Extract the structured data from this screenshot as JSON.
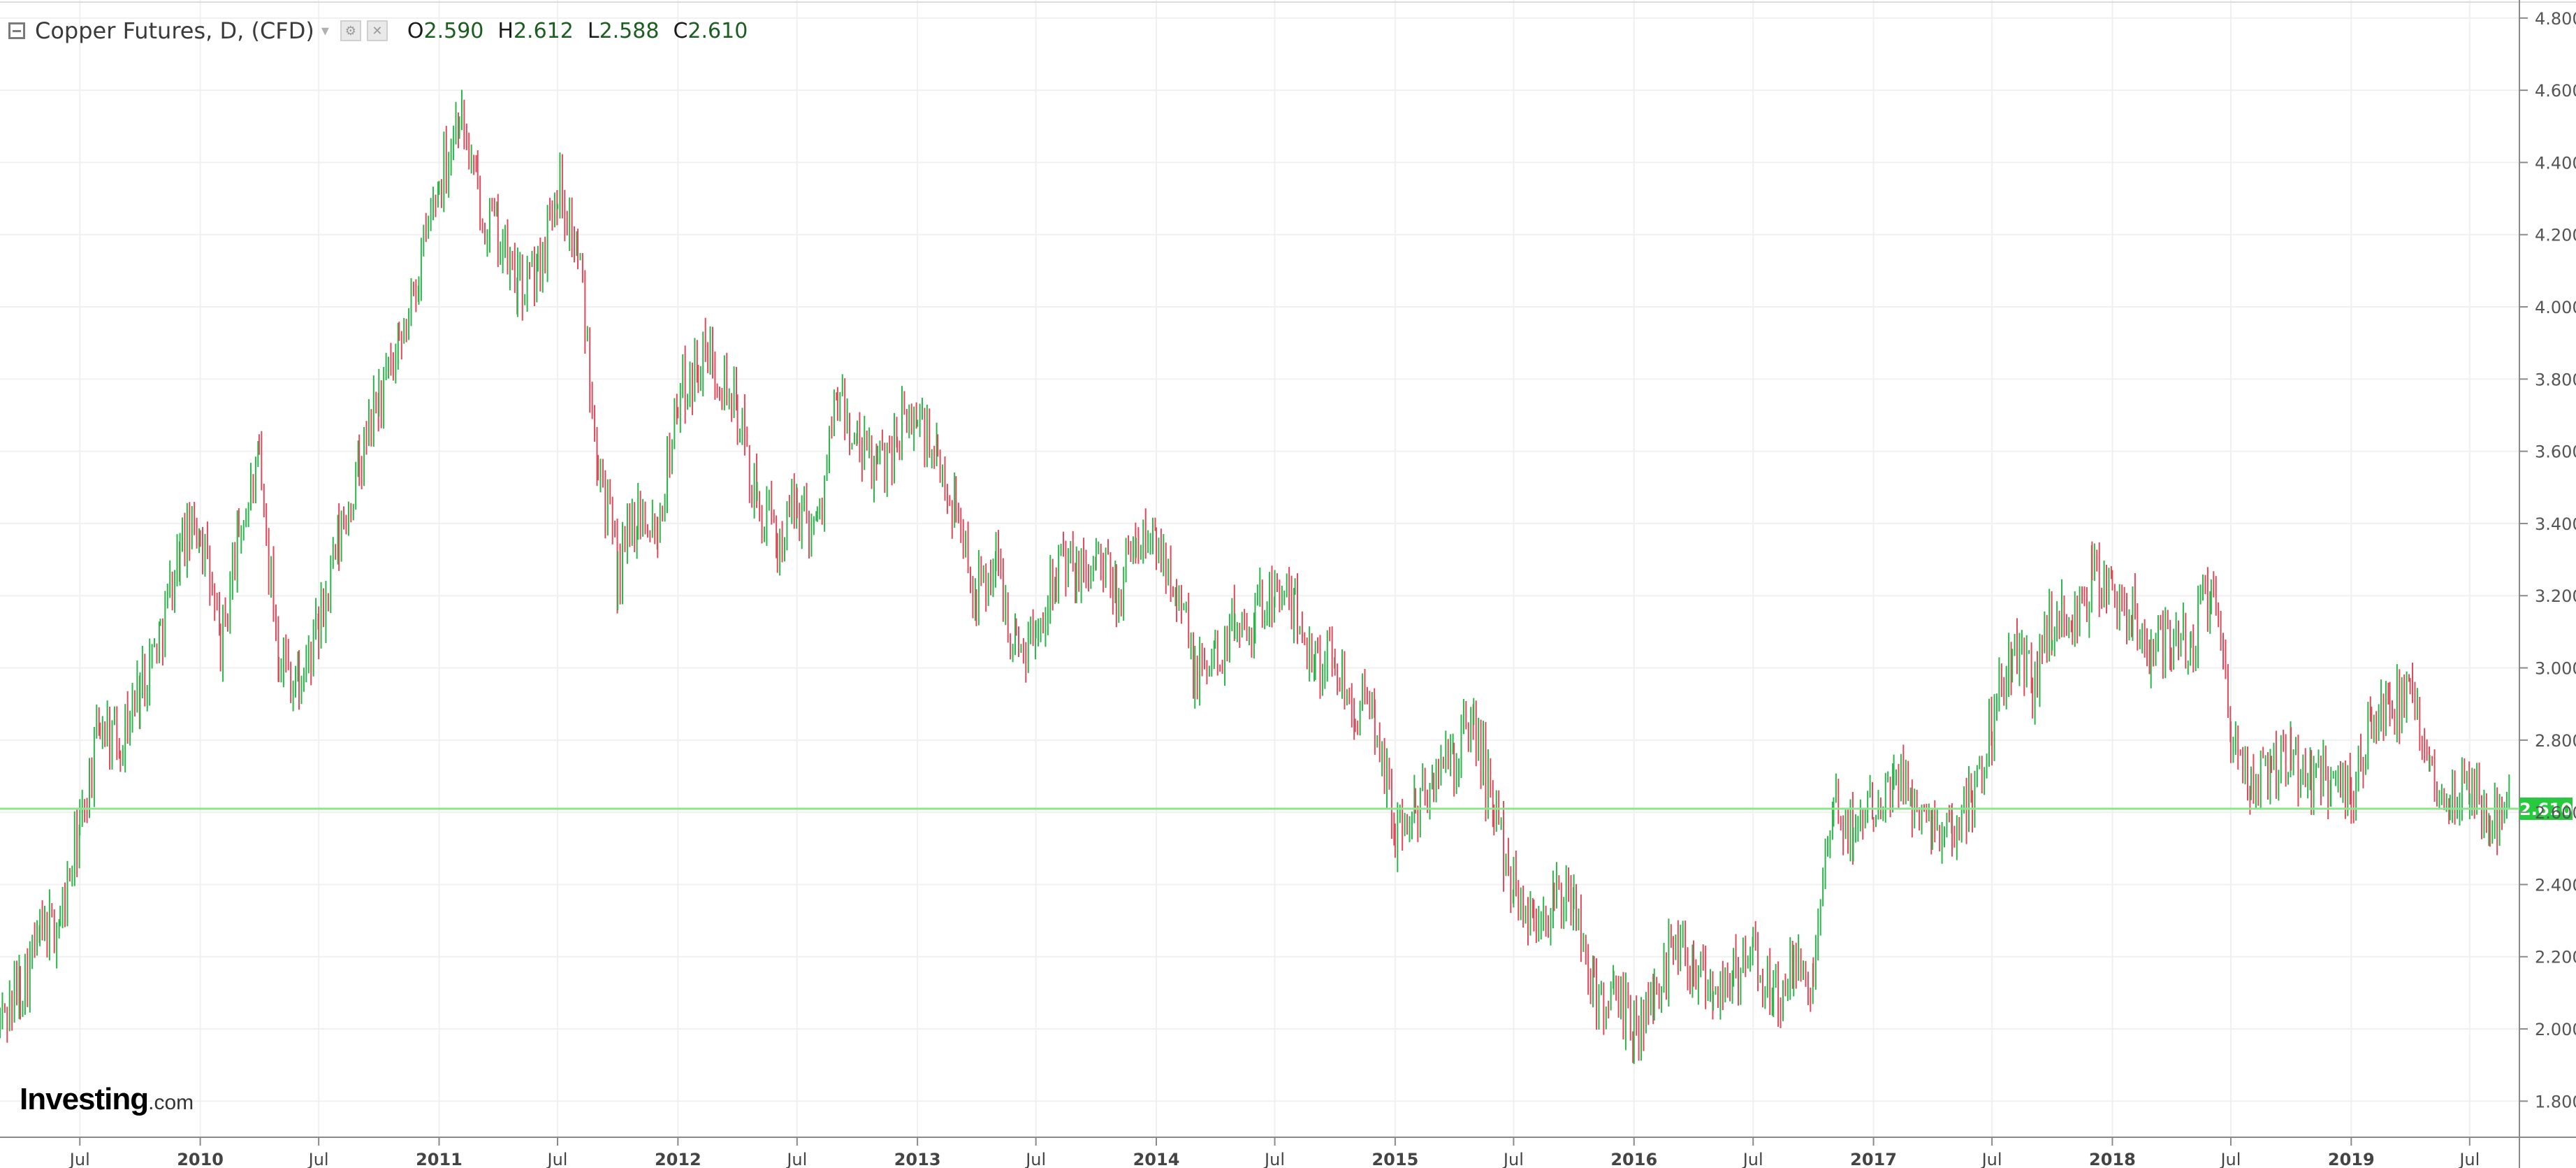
{
  "legend": {
    "symbol": "Copper Futures, D, (CFD)",
    "open_label": "O",
    "open": "2.590",
    "high_label": "H",
    "high": "2.612",
    "low_label": "L",
    "low": "2.588",
    "close_label": "C",
    "close": "2.610"
  },
  "logo": {
    "brand": "Investing",
    "domain": ".com"
  },
  "colors": {
    "up": "#2bb64b",
    "down": "#e0495a",
    "last_price_line": "#8ee48e",
    "last_price_badge": "#27c93f",
    "grid": "#f0f0f0",
    "axis": "#8a8a8a"
  },
  "chart_data": {
    "type": "line",
    "title": "Copper Futures, D, (CFD)",
    "xlabel": "",
    "ylabel": "",
    "ylim": [
      1.7,
      4.85
    ],
    "xlim": [
      "2009-03-01",
      "2019-09-15"
    ],
    "y_ticks": [
      "1.800",
      "2.000",
      "2.200",
      "2.400",
      "2.600",
      "2.800",
      "3.000",
      "3.200",
      "3.400",
      "3.600",
      "3.800",
      "4.000",
      "4.200",
      "4.400",
      "4.600",
      "4.800"
    ],
    "x_ticks": [
      {
        "date": "2009-07-01",
        "label": "Jul"
      },
      {
        "date": "2010-01-01",
        "label": "2010"
      },
      {
        "date": "2010-07-01",
        "label": "Jul"
      },
      {
        "date": "2011-01-01",
        "label": "2011"
      },
      {
        "date": "2011-07-01",
        "label": "Jul"
      },
      {
        "date": "2012-01-01",
        "label": "2012"
      },
      {
        "date": "2012-07-01",
        "label": "Jul"
      },
      {
        "date": "2013-01-01",
        "label": "2013"
      },
      {
        "date": "2013-07-01",
        "label": "Jul"
      },
      {
        "date": "2014-01-01",
        "label": "2014"
      },
      {
        "date": "2014-07-01",
        "label": "Jul"
      },
      {
        "date": "2015-01-01",
        "label": "2015"
      },
      {
        "date": "2015-07-01",
        "label": "Jul"
      },
      {
        "date": "2016-01-01",
        "label": "2016"
      },
      {
        "date": "2016-07-01",
        "label": "Jul"
      },
      {
        "date": "2017-01-01",
        "label": "2017"
      },
      {
        "date": "2017-07-01",
        "label": "Jul"
      },
      {
        "date": "2018-01-01",
        "label": "2018"
      },
      {
        "date": "2018-07-01",
        "label": "Jul"
      },
      {
        "date": "2019-01-01",
        "label": "2019"
      },
      {
        "date": "2019-07-01",
        "label": "Jul"
      }
    ],
    "last_price": {
      "value": 2.61,
      "label": "2.610"
    },
    "series": [
      {
        "values": [
          [
            "2009-03-01",
            2.02
          ],
          [
            "2009-04-01",
            2.12
          ],
          [
            "2009-05-01",
            2.25
          ],
          [
            "2009-06-01",
            2.3
          ],
          [
            "2009-07-01",
            2.55
          ],
          [
            "2009-08-01",
            2.85
          ],
          [
            "2009-09-01",
            2.8
          ],
          [
            "2009-10-01",
            2.95
          ],
          [
            "2009-11-01",
            3.1
          ],
          [
            "2009-12-01",
            3.33
          ],
          [
            "2010-01-01",
            3.4
          ],
          [
            "2010-02-01",
            3.05
          ],
          [
            "2010-03-01",
            3.38
          ],
          [
            "2010-04-01",
            3.55
          ],
          [
            "2010-05-01",
            3.05
          ],
          [
            "2010-06-01",
            2.95
          ],
          [
            "2010-07-01",
            3.1
          ],
          [
            "2010-08-01",
            3.35
          ],
          [
            "2010-09-01",
            3.55
          ],
          [
            "2010-10-01",
            3.75
          ],
          [
            "2010-11-01",
            3.85
          ],
          [
            "2010-12-01",
            4.1
          ],
          [
            "2011-01-01",
            4.35
          ],
          [
            "2011-02-01",
            4.55
          ],
          [
            "2011-03-01",
            4.3
          ],
          [
            "2011-04-01",
            4.2
          ],
          [
            "2011-05-01",
            4.05
          ],
          [
            "2011-06-01",
            4.1
          ],
          [
            "2011-07-01",
            4.35
          ],
          [
            "2011-08-01",
            4.15
          ],
          [
            "2011-09-01",
            3.6
          ],
          [
            "2011-10-01",
            3.25
          ],
          [
            "2011-11-01",
            3.45
          ],
          [
            "2011-12-01",
            3.4
          ],
          [
            "2012-01-01",
            3.75
          ],
          [
            "2012-02-01",
            3.85
          ],
          [
            "2012-03-01",
            3.85
          ],
          [
            "2012-04-01",
            3.7
          ],
          [
            "2012-05-01",
            3.45
          ],
          [
            "2012-06-01",
            3.35
          ],
          [
            "2012-07-01",
            3.45
          ],
          [
            "2012-08-01",
            3.4
          ],
          [
            "2012-09-01",
            3.75
          ],
          [
            "2012-10-01",
            3.6
          ],
          [
            "2012-11-01",
            3.55
          ],
          [
            "2012-12-01",
            3.65
          ],
          [
            "2013-01-01",
            3.7
          ],
          [
            "2013-02-01",
            3.55
          ],
          [
            "2013-03-01",
            3.45
          ],
          [
            "2013-04-01",
            3.2
          ],
          [
            "2013-05-01",
            3.3
          ],
          [
            "2013-06-01",
            3.05
          ],
          [
            "2013-07-01",
            3.1
          ],
          [
            "2013-08-01",
            3.3
          ],
          [
            "2013-09-01",
            3.25
          ],
          [
            "2013-10-01",
            3.3
          ],
          [
            "2013-11-01",
            3.2
          ],
          [
            "2013-12-01",
            3.35
          ],
          [
            "2014-01-01",
            3.35
          ],
          [
            "2014-02-01",
            3.25
          ],
          [
            "2014-03-01",
            2.97
          ],
          [
            "2014-04-01",
            3.03
          ],
          [
            "2014-05-01",
            3.13
          ],
          [
            "2014-06-01",
            3.15
          ],
          [
            "2014-07-01",
            3.22
          ],
          [
            "2014-08-01",
            3.15
          ],
          [
            "2014-09-01",
            3.03
          ],
          [
            "2014-10-01",
            3.02
          ],
          [
            "2014-11-01",
            2.9
          ],
          [
            "2014-12-01",
            2.85
          ],
          [
            "2015-01-01",
            2.55
          ],
          [
            "2015-02-01",
            2.6
          ],
          [
            "2015-03-01",
            2.7
          ],
          [
            "2015-04-01",
            2.75
          ],
          [
            "2015-05-01",
            2.85
          ],
          [
            "2015-06-01",
            2.6
          ],
          [
            "2015-07-01",
            2.4
          ],
          [
            "2015-08-01",
            2.3
          ],
          [
            "2015-09-01",
            2.35
          ],
          [
            "2015-10-01",
            2.35
          ],
          [
            "2015-11-01",
            2.1
          ],
          [
            "2015-12-01",
            2.07
          ],
          [
            "2016-01-01",
            2.0
          ],
          [
            "2016-02-01",
            2.08
          ],
          [
            "2016-03-01",
            2.25
          ],
          [
            "2016-04-01",
            2.2
          ],
          [
            "2016-05-01",
            2.12
          ],
          [
            "2016-06-01",
            2.15
          ],
          [
            "2016-07-01",
            2.2
          ],
          [
            "2016-08-01",
            2.08
          ],
          [
            "2016-09-01",
            2.15
          ],
          [
            "2016-10-01",
            2.15
          ],
          [
            "2016-11-01",
            2.6
          ],
          [
            "2016-12-01",
            2.55
          ],
          [
            "2017-01-01",
            2.65
          ],
          [
            "2017-02-01",
            2.7
          ],
          [
            "2017-03-01",
            2.65
          ],
          [
            "2017-04-01",
            2.58
          ],
          [
            "2017-05-01",
            2.55
          ],
          [
            "2017-06-01",
            2.65
          ],
          [
            "2017-07-01",
            2.85
          ],
          [
            "2017-08-01",
            3.05
          ],
          [
            "2017-09-01",
            2.95
          ],
          [
            "2017-10-01",
            3.15
          ],
          [
            "2017-11-01",
            3.1
          ],
          [
            "2017-12-01",
            3.25
          ],
          [
            "2018-01-01",
            3.2
          ],
          [
            "2018-02-01",
            3.15
          ],
          [
            "2018-03-01",
            3.05
          ],
          [
            "2018-04-01",
            3.1
          ],
          [
            "2018-05-01",
            3.05
          ],
          [
            "2018-06-01",
            3.25
          ],
          [
            "2018-07-01",
            2.8
          ],
          [
            "2018-08-01",
            2.65
          ],
          [
            "2018-09-01",
            2.75
          ],
          [
            "2018-10-01",
            2.75
          ],
          [
            "2018-11-01",
            2.7
          ],
          [
            "2018-12-01",
            2.7
          ],
          [
            "2019-01-01",
            2.65
          ],
          [
            "2019-02-01",
            2.85
          ],
          [
            "2019-03-01",
            2.9
          ],
          [
            "2019-04-01",
            2.9
          ],
          [
            "2019-05-01",
            2.72
          ],
          [
            "2019-06-01",
            2.65
          ],
          [
            "2019-07-01",
            2.7
          ],
          [
            "2019-08-01",
            2.58
          ],
          [
            "2019-09-01",
            2.61
          ]
        ]
      }
    ]
  }
}
